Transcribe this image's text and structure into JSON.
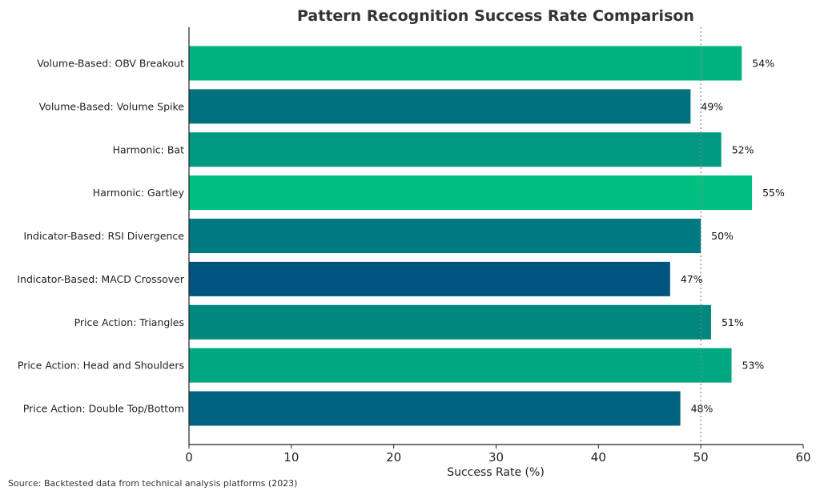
{
  "chart_data": {
    "type": "bar",
    "orientation": "horizontal",
    "title": "Pattern Recognition Success Rate Comparison",
    "xlabel": "Success Rate (%)",
    "ylabel": "",
    "xlim": [
      0,
      60
    ],
    "xticks": [
      0,
      10,
      20,
      30,
      40,
      50,
      60
    ],
    "reference_line": {
      "x": 50,
      "style": "dotted",
      "color": "#888888"
    },
    "grid": false,
    "value_suffix": "%",
    "categories": [
      "Volume-Based: OBV Breakout",
      "Volume-Based: Volume Spike",
      "Harmonic: Bat",
      "Harmonic: Gartley",
      "Indicator-Based: RSI Divergence",
      "Indicator-Based: MACD Crossover",
      "Price Action: Triangles",
      "Price Action: Head and Shoulders",
      "Price Action: Double Top/Bottom"
    ],
    "values": [
      54,
      49,
      52,
      55,
      50,
      47,
      51,
      53,
      48
    ],
    "value_labels": [
      "54%",
      "49%",
      "52%",
      "55%",
      "50%",
      "47%",
      "51%",
      "53%",
      "48%"
    ],
    "colors": [
      "#00b282",
      "#00717f",
      "#009a82",
      "#00bf80",
      "#007a80",
      "#005580",
      "#00887f",
      "#00a881",
      "#00637f"
    ]
  },
  "footer": {
    "source": "Source: Backtested data from technical analysis platforms (2023)"
  }
}
